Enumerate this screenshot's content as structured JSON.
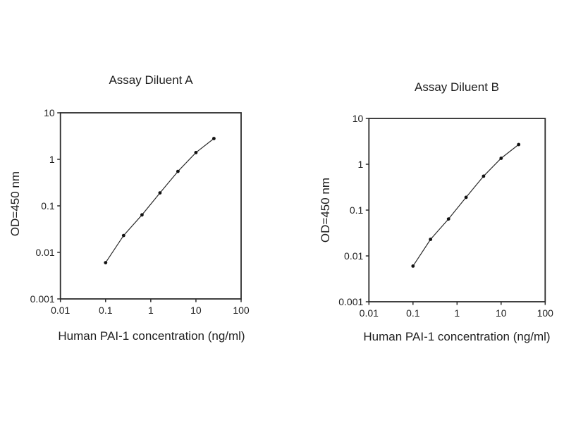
{
  "figure": {
    "background": "#ffffff",
    "text_color": "#1f1f1f",
    "axis_color": "#2b2b2b",
    "line_color": "#2a2a2a",
    "marker_color": "#111111"
  },
  "chart_data": [
    {
      "type": "line",
      "title": "Assay Diluent A",
      "xlabel": "Human PAI-1 concentration (ng/ml)",
      "ylabel": "OD=450 nm",
      "x_scale": "log",
      "y_scale": "log",
      "xlim": [
        0.01,
        100
      ],
      "ylim": [
        0.001,
        10
      ],
      "x_ticks": [
        "0.01",
        "0.1",
        "1",
        "10",
        "100"
      ],
      "y_ticks": [
        "0.001",
        "0.01",
        "0.1",
        "1",
        "10"
      ],
      "grid": false,
      "legend": false,
      "marker": "filled-circle",
      "x": [
        0.1,
        0.25,
        0.64,
        1.6,
        4,
        10,
        25
      ],
      "y": [
        0.006,
        0.023,
        0.064,
        0.19,
        0.55,
        1.4,
        2.8
      ]
    },
    {
      "type": "line",
      "title": "Assay Diluent B",
      "xlabel": "Human PAI-1 concentration (ng/ml)",
      "ylabel": "OD=450 nm",
      "x_scale": "log",
      "y_scale": "log",
      "xlim": [
        0.01,
        100
      ],
      "ylim": [
        0.001,
        10
      ],
      "x_ticks": [
        "0.01",
        "0.1",
        "1",
        "10",
        "100"
      ],
      "y_ticks": [
        "0.001",
        "0.01",
        "0.1",
        "1",
        "10"
      ],
      "grid": false,
      "legend": false,
      "marker": "filled-circle",
      "x": [
        0.1,
        0.25,
        0.64,
        1.6,
        4,
        10,
        25
      ],
      "y": [
        0.006,
        0.023,
        0.064,
        0.19,
        0.55,
        1.35,
        2.7
      ]
    }
  ]
}
